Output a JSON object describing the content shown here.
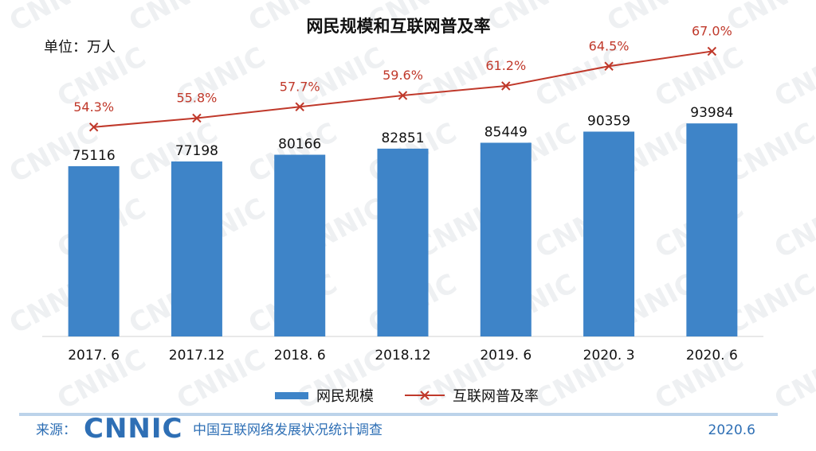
{
  "chart_data": {
    "type": "bar",
    "title": "网民规模和互联网普及率",
    "unit_label": "单位：万人",
    "categories": [
      "2017. 6",
      "2017.12",
      "2018. 6",
      "2018.12",
      "2019. 6",
      "2020. 3",
      "2020. 6"
    ],
    "series": [
      {
        "name": "网民规模",
        "type": "bar",
        "values": [
          75116,
          77198,
          80166,
          82851,
          85449,
          90359,
          93984
        ],
        "labels": [
          "75116",
          "77198",
          "80166",
          "82851",
          "85449",
          "90359",
          "93984"
        ],
        "color": "#3e84c8"
      },
      {
        "name": "互联网普及率",
        "type": "line",
        "values": [
          54.3,
          55.8,
          57.7,
          59.6,
          61.2,
          64.5,
          67.0
        ],
        "labels": [
          "54.3%",
          "55.8%",
          "57.7%",
          "59.6%",
          "61.2%",
          "64.5%",
          "67.0%"
        ],
        "color": "#c0392b",
        "marker": "x"
      }
    ],
    "ylim": [
      0,
      100000
    ],
    "y2lim": [
      0,
      100
    ],
    "grid": false,
    "legend_position": "bottom"
  },
  "footer": {
    "source_label": "来源：",
    "logo_text": "CNNIC",
    "description": "中国互联网络发展状况统计调查",
    "date": "2020.6"
  },
  "watermark": "CNNIC",
  "colors": {
    "bar": "#3e84c8",
    "line": "#c0392b",
    "footer": "#2e6fb5",
    "footer_rule": "#bcd3ea"
  }
}
